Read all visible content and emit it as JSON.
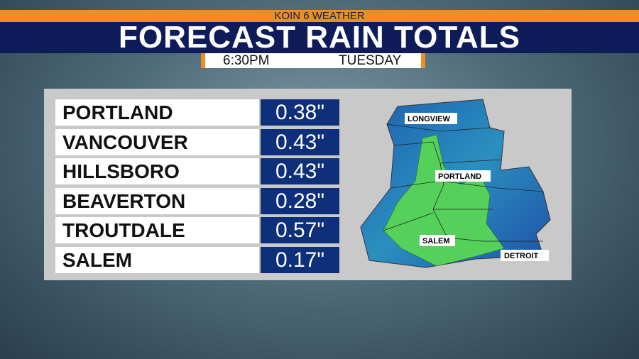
{
  "header": {
    "station": "KOIN 6 WEATHER",
    "title": "FORECAST RAIN TOTALS",
    "time": "6:30PM",
    "day": "TUESDAY"
  },
  "table": {
    "rows": [
      [
        "PORTLAND",
        "0.38\""
      ],
      [
        "VANCOUVER",
        "0.43\""
      ],
      [
        "HILLSBORO",
        "0.43\""
      ],
      [
        "BEAVERTON",
        "0.28\""
      ],
      [
        "TROUTDALE",
        "0.57\""
      ],
      [
        "SALEM",
        "0.17\""
      ]
    ]
  },
  "map": {
    "labels": [
      "LONGVIEW",
      "PORTLAND",
      "SALEM",
      "DETROIT"
    ]
  }
}
